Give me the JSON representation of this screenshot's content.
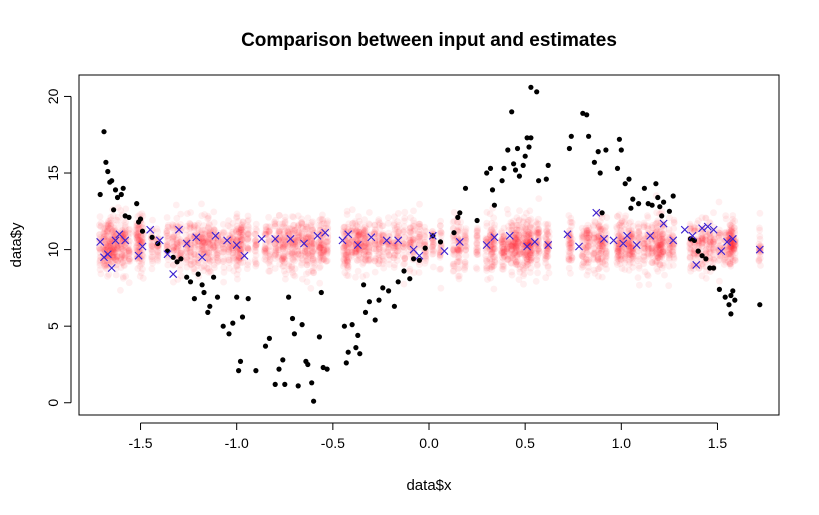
{
  "chart_data": {
    "type": "scatter",
    "title": "Comparison between input and estimates",
    "xlabel": "data$x",
    "ylabel": "data$y",
    "xlim": [
      -1.82,
      1.82
    ],
    "ylim": [
      -0.8,
      21.4
    ],
    "xticks": [
      -1.5,
      -1.0,
      -0.5,
      0.0,
      0.5,
      1.0,
      1.5
    ],
    "xtick_labels": [
      "-1.5",
      "-1.0",
      "-0.5",
      "0.0",
      "0.5",
      "1.0",
      "1.5"
    ],
    "yticks": [
      0,
      5,
      10,
      15,
      20
    ],
    "ytick_labels": [
      "0",
      "5",
      "10",
      "15",
      "20"
    ],
    "grid": false,
    "colors": {
      "input": "#000000",
      "estimate": "#3a1fd0",
      "draws": "#ff1a2a"
    },
    "series": [
      {
        "marker": "filled-circle",
        "points": [
          [
            -1.69,
            17.7
          ],
          [
            -1.68,
            15.7
          ],
          [
            -1.67,
            15.1
          ],
          [
            -1.66,
            14.4
          ],
          [
            -1.65,
            14.5
          ],
          [
            -1.71,
            13.6
          ],
          [
            -1.63,
            13.9
          ],
          [
            -1.62,
            13.4
          ],
          [
            -1.6,
            13.6
          ],
          [
            -1.59,
            14.0
          ],
          [
            -1.64,
            12.6
          ],
          [
            -1.58,
            12.2
          ],
          [
            -1.56,
            12.1
          ],
          [
            -1.52,
            13.0
          ],
          [
            -1.51,
            11.8
          ],
          [
            -1.5,
            12.0
          ],
          [
            -1.49,
            11.2
          ],
          [
            -1.44,
            10.8
          ],
          [
            -1.41,
            10.4
          ],
          [
            -1.36,
            9.9
          ],
          [
            -1.33,
            9.5
          ],
          [
            -1.31,
            9.2
          ],
          [
            -1.29,
            9.4
          ],
          [
            -1.26,
            8.2
          ],
          [
            -1.24,
            7.9
          ],
          [
            -1.22,
            6.8
          ],
          [
            -1.2,
            8.4
          ],
          [
            -1.18,
            7.7
          ],
          [
            -1.17,
            7.2
          ],
          [
            -1.15,
            5.9
          ],
          [
            -1.14,
            6.3
          ],
          [
            -1.12,
            8.2
          ],
          [
            -1.1,
            6.9
          ],
          [
            -1.07,
            5.0
          ],
          [
            -1.04,
            4.5
          ],
          [
            -1.02,
            5.2
          ],
          [
            -1.0,
            6.9
          ],
          [
            -0.99,
            2.1
          ],
          [
            -0.98,
            2.7
          ],
          [
            -0.97,
            5.6
          ],
          [
            -0.94,
            6.8
          ],
          [
            -0.9,
            2.1
          ],
          [
            -0.85,
            3.7
          ],
          [
            -0.83,
            4.2
          ],
          [
            -0.8,
            1.2
          ],
          [
            -0.78,
            2.2
          ],
          [
            -0.76,
            2.8
          ],
          [
            -0.75,
            1.2
          ],
          [
            -0.73,
            6.9
          ],
          [
            -0.71,
            5.5
          ],
          [
            -0.7,
            4.5
          ],
          [
            -0.68,
            1.1
          ],
          [
            -0.66,
            5.1
          ],
          [
            -0.64,
            2.7
          ],
          [
            -0.63,
            2.5
          ],
          [
            -0.61,
            1.3
          ],
          [
            -0.6,
            0.1
          ],
          [
            -0.57,
            4.3
          ],
          [
            -0.55,
            2.3
          ],
          [
            -0.53,
            2.2
          ],
          [
            -0.56,
            7.2
          ],
          [
            -0.44,
            5.0
          ],
          [
            -0.43,
            2.6
          ],
          [
            -0.42,
            3.3
          ],
          [
            -0.4,
            5.1
          ],
          [
            -0.38,
            3.6
          ],
          [
            -0.37,
            4.4
          ],
          [
            -0.36,
            3.2
          ],
          [
            -0.34,
            7.7
          ],
          [
            -0.33,
            5.9
          ],
          [
            -0.31,
            6.6
          ],
          [
            -0.28,
            5.4
          ],
          [
            -0.26,
            6.7
          ],
          [
            -0.24,
            7.5
          ],
          [
            -0.21,
            7.3
          ],
          [
            -0.18,
            6.3
          ],
          [
            -0.16,
            7.9
          ],
          [
            -0.13,
            8.6
          ],
          [
            -0.1,
            8.1
          ],
          [
            -0.08,
            9.4
          ],
          [
            -0.05,
            9.3
          ],
          [
            -0.02,
            10.1
          ],
          [
            0.02,
            10.9
          ],
          [
            0.06,
            10.5
          ],
          [
            0.13,
            11.1
          ],
          [
            0.15,
            12.1
          ],
          [
            0.16,
            12.4
          ],
          [
            0.19,
            14.0
          ],
          [
            0.25,
            11.9
          ],
          [
            0.3,
            15.0
          ],
          [
            0.32,
            15.3
          ],
          [
            0.33,
            13.9
          ],
          [
            0.34,
            12.9
          ],
          [
            0.38,
            14.5
          ],
          [
            0.39,
            15.3
          ],
          [
            0.41,
            16.5
          ],
          [
            0.43,
            19.0
          ],
          [
            0.44,
            15.6
          ],
          [
            0.45,
            15.2
          ],
          [
            0.46,
            16.6
          ],
          [
            0.47,
            14.8
          ],
          [
            0.49,
            15.5
          ],
          [
            0.5,
            16.1
          ],
          [
            0.51,
            17.3
          ],
          [
            0.53,
            17.3
          ],
          [
            0.52,
            16.7
          ],
          [
            0.53,
            20.6
          ],
          [
            0.56,
            20.3
          ],
          [
            0.57,
            14.5
          ],
          [
            0.61,
            14.6
          ],
          [
            0.62,
            15.5
          ],
          [
            0.73,
            16.6
          ],
          [
            0.74,
            17.4
          ],
          [
            0.8,
            18.9
          ],
          [
            0.82,
            18.8
          ],
          [
            0.83,
            17.4
          ],
          [
            0.86,
            15.7
          ],
          [
            0.88,
            16.4
          ],
          [
            0.89,
            15.0
          ],
          [
            0.9,
            12.4
          ],
          [
            0.92,
            16.5
          ],
          [
            0.98,
            15.3
          ],
          [
            0.99,
            17.2
          ],
          [
            1.0,
            16.5
          ],
          [
            1.02,
            14.3
          ],
          [
            1.04,
            14.6
          ],
          [
            1.05,
            12.7
          ],
          [
            1.06,
            13.3
          ],
          [
            1.09,
            13.0
          ],
          [
            1.12,
            14.0
          ],
          [
            1.14,
            13.0
          ],
          [
            1.16,
            12.9
          ],
          [
            1.18,
            14.3
          ],
          [
            1.19,
            13.4
          ],
          [
            1.2,
            12.8
          ],
          [
            1.21,
            12.2
          ],
          [
            1.22,
            13.1
          ],
          [
            1.25,
            12.5
          ],
          [
            1.27,
            13.5
          ],
          [
            1.36,
            10.7
          ],
          [
            1.38,
            10.6
          ],
          [
            1.4,
            9.9
          ],
          [
            1.42,
            9.6
          ],
          [
            1.44,
            9.4
          ],
          [
            1.46,
            8.8
          ],
          [
            1.48,
            8.8
          ],
          [
            1.51,
            7.4
          ],
          [
            1.54,
            6.9
          ],
          [
            1.56,
            6.4
          ],
          [
            1.57,
            5.8
          ],
          [
            1.57,
            7.0
          ],
          [
            1.58,
            7.3
          ],
          [
            1.59,
            6.7
          ],
          [
            1.72,
            6.4
          ]
        ]
      },
      {
        "marker": "cross",
        "points": [
          [
            -1.71,
            10.5
          ],
          [
            -1.69,
            9.5
          ],
          [
            -1.67,
            9.7
          ],
          [
            -1.65,
            8.8
          ],
          [
            -1.63,
            10.6
          ],
          [
            -1.61,
            11.0
          ],
          [
            -1.58,
            10.6
          ],
          [
            -1.51,
            9.6
          ],
          [
            -1.49,
            10.2
          ],
          [
            -1.45,
            11.3
          ],
          [
            -1.4,
            10.6
          ],
          [
            -1.36,
            9.7
          ],
          [
            -1.33,
            8.4
          ],
          [
            -1.3,
            11.3
          ],
          [
            -1.26,
            10.4
          ],
          [
            -1.21,
            10.8
          ],
          [
            -1.18,
            9.5
          ],
          [
            -1.11,
            10.9
          ],
          [
            -1.05,
            10.6
          ],
          [
            -1.0,
            10.3
          ],
          [
            -0.96,
            9.6
          ],
          [
            -0.87,
            10.7
          ],
          [
            -0.8,
            10.7
          ],
          [
            -0.72,
            10.7
          ],
          [
            -0.65,
            10.4
          ],
          [
            -0.58,
            10.9
          ],
          [
            -0.54,
            11.1
          ],
          [
            -0.45,
            10.6
          ],
          [
            -0.42,
            11.0
          ],
          [
            -0.37,
            10.3
          ],
          [
            -0.3,
            10.8
          ],
          [
            -0.22,
            10.6
          ],
          [
            -0.16,
            10.6
          ],
          [
            -0.08,
            10.0
          ],
          [
            -0.05,
            9.6
          ],
          [
            0.02,
            10.9
          ],
          [
            0.08,
            9.9
          ],
          [
            0.16,
            10.5
          ],
          [
            0.3,
            10.3
          ],
          [
            0.34,
            10.8
          ],
          [
            0.42,
            10.9
          ],
          [
            0.51,
            10.2
          ],
          [
            0.55,
            10.5
          ],
          [
            0.62,
            10.3
          ],
          [
            0.72,
            11.0
          ],
          [
            0.78,
            10.2
          ],
          [
            0.87,
            12.4
          ],
          [
            0.91,
            10.7
          ],
          [
            0.96,
            10.6
          ],
          [
            1.01,
            10.4
          ],
          [
            1.03,
            10.9
          ],
          [
            1.08,
            10.3
          ],
          [
            1.15,
            10.9
          ],
          [
            1.22,
            11.7
          ],
          [
            1.27,
            10.6
          ],
          [
            1.33,
            11.3
          ],
          [
            1.37,
            10.9
          ],
          [
            1.39,
            9.0
          ],
          [
            1.42,
            11.4
          ],
          [
            1.45,
            11.5
          ],
          [
            1.48,
            11.3
          ],
          [
            1.52,
            9.9
          ],
          [
            1.55,
            10.5
          ],
          [
            1.58,
            10.7
          ],
          [
            1.72,
            10.0
          ]
        ]
      }
    ]
  }
}
